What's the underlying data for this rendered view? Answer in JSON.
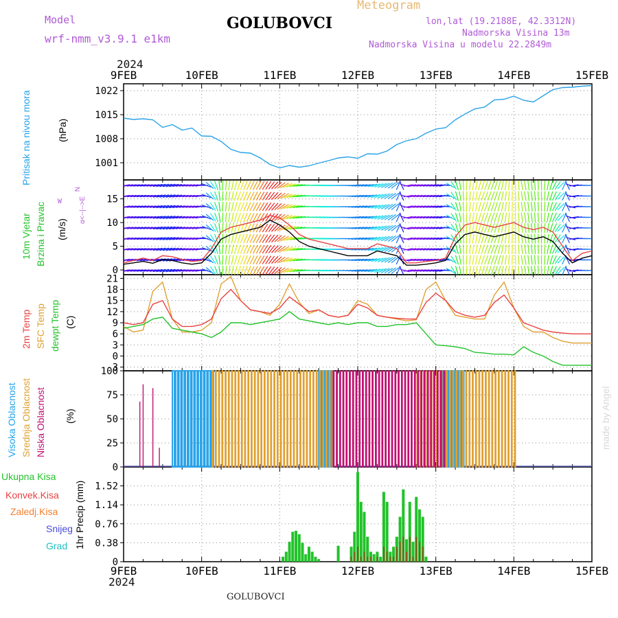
{
  "header": {
    "model_label": "Model",
    "model_name": "wrf-nmm_v3.9.1  e1km",
    "station": "GOLUBOVCI",
    "meteogram_label": "Meteogram",
    "coords": "lon,lat (19.2188E, 42.3312N)",
    "elevation": "Nadmorska Visina 13m",
    "model_elevation": "Nadmorska Visina u modelu 22.2849m",
    "year_top": "2024",
    "year_bottom": "2024",
    "footer_station": "GOLUBOVCI",
    "watermark": "made by Angel"
  },
  "colors": {
    "pressure": "#29a3e8",
    "temp2m": "#e84040",
    "sfc_temp": "#e0a030",
    "dewpt": "#22c22a",
    "high_cloud": "#29a3e8",
    "mid_cloud": "#e0a030",
    "low_cloud": "#c01070",
    "total_precip": "#22c22a",
    "conv_precip": "#e84040",
    "frozen": "#f08030",
    "snow": "#4a4ad8",
    "hail": "#20c0c0",
    "axis_purple": "#b05ad6"
  },
  "panel_labels": {
    "pressure": [
      "Pritisak na nivou mora",
      "(hPa)"
    ],
    "wind": [
      "10m Vjetar",
      "Brzina i Pravac",
      "(m/s)"
    ],
    "wind_rose": [
      "N",
      "α<--|-->E",
      "W"
    ],
    "temp": [
      "2m Temp",
      "SFC Temp",
      "dewpt Temp",
      "(C)"
    ],
    "cloud": [
      "Visoka Oblacnost",
      "Srednja Oblacnost",
      "Niska Oblacnost",
      "(%)"
    ],
    "precip_legend": [
      "Ukupna Kisa",
      "Konvek.Kisa",
      "Zaledj.Kisa",
      "Snijeg",
      "Grad"
    ],
    "precip_axis": "1hr Precip (mm)"
  },
  "chart_data": {
    "type": "line",
    "x_labels": [
      "9FEB",
      "10FEB",
      "11FEB",
      "12FEB",
      "13FEB",
      "14FEB",
      "15FEB"
    ],
    "x_range_hours": [
      0,
      144
    ],
    "panels": {
      "pressure": {
        "unit": "hPa",
        "yticks": [
          1001,
          1008,
          1015,
          1022
        ],
        "ylim": [
          996,
          1024
        ],
        "x": [
          0,
          3,
          6,
          9,
          12,
          15,
          18,
          21,
          24,
          27,
          30,
          33,
          36,
          39,
          42,
          45,
          48,
          51,
          54,
          57,
          60,
          63,
          66,
          69,
          72,
          75,
          78,
          81,
          84,
          87,
          90,
          93,
          96,
          99,
          102,
          105,
          108,
          111,
          114,
          117,
          120,
          123,
          126,
          129,
          132,
          135,
          138,
          141,
          144
        ],
        "values": [
          1014,
          1013.6,
          1013.8,
          1013.5,
          1011.3,
          1012.1,
          1010.5,
          1011.1,
          1008.8,
          1008.7,
          1007.2,
          1004.9,
          1004,
          1003.8,
          1002.4,
          1000.5,
          999.5,
          1000.2,
          999.7,
          1000.1,
          1000.9,
          1001.6,
          1002.4,
          1002.7,
          1002.3,
          1003.6,
          1003.5,
          1004.4,
          1006.3,
          1007.4,
          1008,
          1009.6,
          1010.8,
          1011.2,
          1013.5,
          1015.2,
          1016.7,
          1017.2,
          1019.3,
          1019.5,
          1020.4,
          1019.2,
          1018.7,
          1020.5,
          1022.3,
          1022.9,
          1023,
          1023.3,
          1023.5
        ]
      },
      "wind": {
        "unit": "m/s",
        "yticks": [
          0,
          5,
          10,
          15
        ],
        "ylim": [
          -1,
          19
        ],
        "x": [
          0,
          3,
          6,
          9,
          12,
          15,
          18,
          21,
          24,
          27,
          30,
          33,
          36,
          39,
          42,
          45,
          48,
          51,
          54,
          57,
          60,
          63,
          66,
          69,
          72,
          75,
          78,
          81,
          84,
          87,
          90,
          93,
          96,
          99,
          102,
          105,
          108,
          111,
          114,
          117,
          120,
          123,
          126,
          129,
          132,
          135,
          138,
          141,
          144
        ],
        "speed": [
          1.2,
          1.5,
          1.8,
          1.4,
          2.2,
          2.0,
          1.5,
          1.2,
          1.5,
          3.5,
          6.5,
          7.5,
          8.0,
          8.5,
          9.0,
          10.5,
          9.5,
          8.0,
          6.0,
          5.0,
          4.5,
          4.0,
          3.5,
          3.0,
          3.0,
          3.0,
          4.0,
          3.5,
          3.0,
          1.0,
          1.0,
          1.2,
          1.5,
          2.0,
          5.5,
          7.5,
          8.0,
          7.5,
          7.0,
          7.5,
          8.0,
          7.0,
          6.5,
          7.0,
          6.0,
          3.5,
          1.5,
          2.5,
          3.0
        ],
        "gust": [
          1.5,
          2.0,
          2.5,
          2.0,
          3.0,
          2.8,
          2.2,
          1.8,
          2.0,
          4.5,
          8.0,
          9.0,
          9.5,
          10.0,
          10.5,
          11.5,
          11.0,
          9.5,
          7.5,
          6.5,
          6.0,
          5.5,
          5.0,
          4.5,
          4.5,
          4.5,
          5.5,
          5.0,
          4.5,
          1.5,
          1.5,
          1.8,
          2.0,
          2.5,
          7.0,
          9.5,
          10.0,
          9.5,
          9.0,
          9.5,
          10.0,
          9.0,
          8.5,
          9.0,
          8.0,
          5.0,
          2.0,
          3.5,
          4.0
        ],
        "direction_deg": [
          80,
          80,
          80,
          80,
          75,
          75,
          80,
          80,
          80,
          140,
          180,
          190,
          200,
          205,
          210,
          215,
          230,
          250,
          260,
          270,
          275,
          275,
          270,
          270,
          260,
          260,
          250,
          240,
          230,
          80,
          80,
          80,
          80,
          80,
          160,
          180,
          190,
          200,
          200,
          190,
          180,
          170,
          175,
          180,
          200,
          230,
          80,
          90,
          90
        ]
      },
      "temperature": {
        "unit": "C",
        "yticks": [
          -3,
          0,
          3,
          6,
          9,
          12,
          15,
          18,
          21
        ],
        "ylim": [
          -4,
          22
        ],
        "x": [
          0,
          3,
          6,
          9,
          12,
          15,
          18,
          21,
          24,
          27,
          30,
          33,
          36,
          39,
          42,
          45,
          48,
          51,
          54,
          57,
          60,
          63,
          66,
          69,
          72,
          75,
          78,
          81,
          84,
          87,
          90,
          93,
          96,
          99,
          102,
          105,
          108,
          111,
          114,
          117,
          120,
          123,
          126,
          129,
          132,
          135,
          138,
          141,
          144
        ],
        "temp_2m": [
          9.0,
          8.5,
          9.0,
          14.0,
          15.0,
          10.0,
          8.0,
          8.0,
          8.5,
          10.0,
          15.5,
          18.0,
          15.0,
          12.5,
          12.0,
          11.5,
          13.0,
          16.0,
          14.0,
          12.0,
          12.5,
          11.0,
          10.5,
          11.0,
          14.0,
          13.0,
          11.0,
          10.5,
          10.2,
          10.0,
          10.0,
          14.5,
          17.0,
          15.0,
          12.0,
          11.0,
          10.5,
          11.0,
          14.5,
          16.5,
          13.0,
          9.0,
          8.0,
          7.0,
          6.5,
          6.2,
          6.0,
          6.0,
          6.0
        ],
        "sfc_temp": [
          8.0,
          6.5,
          7.0,
          17.5,
          20.0,
          10.0,
          6.5,
          6.5,
          7.0,
          9.0,
          19.5,
          21.5,
          15.0,
          12.5,
          12.0,
          11.0,
          14.0,
          19.5,
          14.5,
          11.5,
          12.5,
          11.0,
          10.5,
          11.0,
          15.0,
          14.0,
          11.0,
          10.5,
          10.0,
          9.5,
          9.8,
          18.0,
          20.0,
          15.0,
          11.0,
          10.5,
          10.0,
          10.0,
          16.5,
          20.0,
          13.0,
          8.0,
          6.5,
          6.5,
          5.0,
          4.0,
          3.5,
          3.5,
          3.5
        ],
        "dewpt": [
          7.5,
          8.0,
          8.5,
          10.0,
          10.5,
          7.5,
          7.0,
          6.5,
          6.0,
          5.0,
          6.5,
          9.0,
          9.0,
          8.5,
          9.0,
          9.5,
          10.0,
          12.0,
          10.0,
          9.5,
          9.0,
          8.5,
          9.0,
          8.5,
          9.0,
          9.0,
          8.0,
          8.0,
          8.5,
          8.5,
          9.0,
          6.0,
          3.0,
          2.8,
          2.5,
          2.0,
          1.0,
          0.8,
          0.5,
          0.5,
          0.3,
          2.5,
          1.0,
          0.0,
          -1.5,
          -2.5,
          -2.5,
          -2.5,
          -2.5
        ]
      },
      "cloud": {
        "unit": "%",
        "yticks": [
          0,
          25,
          50,
          75,
          100
        ],
        "ylim": [
          0,
          100
        ],
        "series": [
          {
            "name": "Visoka Oblacnost",
            "segments_hours": [
              [
                15,
                27
              ],
              [
                60,
                64
              ],
              [
                98,
                104
              ]
            ],
            "value": 100
          },
          {
            "name": "Srednja Oblacnost",
            "segments_hours": [
              [
                27,
                64
              ],
              [
                90,
                120
              ]
            ],
            "value": 100
          },
          {
            "name": "Niska Oblacnost",
            "segments_hours": [
              [
                64,
                98
              ]
            ],
            "value": 100
          },
          {
            "name": "Niska Oblacnost (early)",
            "x": [
              5,
              6,
              9,
              11
            ],
            "values": [
              68,
              86,
              82,
              20
            ]
          }
        ]
      },
      "precip": {
        "unit": "mm",
        "yticks": [
          0,
          0.38,
          0.76,
          1.14,
          1.52
        ],
        "ylim": [
          0,
          1.9
        ],
        "x": [
          49,
          50,
          51,
          52,
          53,
          54,
          55,
          56,
          57,
          58,
          59,
          60,
          66,
          70,
          71,
          72,
          73,
          74,
          75,
          76,
          77,
          78,
          79,
          80,
          81,
          82,
          83,
          84,
          85,
          86,
          87,
          88,
          89,
          90,
          91,
          92,
          93
        ],
        "total": [
          0.1,
          0.2,
          0.4,
          0.6,
          0.62,
          0.55,
          0.38,
          0.15,
          0.3,
          0.2,
          0.1,
          0.05,
          0.32,
          0.3,
          0.6,
          1.8,
          1.2,
          1.0,
          0.5,
          0.2,
          0.15,
          0.2,
          0.1,
          1.4,
          1.2,
          0.2,
          0.3,
          0.5,
          0.9,
          1.45,
          0.45,
          1.2,
          0.4,
          1.3,
          1.05,
          0.9,
          0.1
        ],
        "convective": [
          0.0,
          0.0,
          0.0,
          0.0,
          0.0,
          0.0,
          0.0,
          0.0,
          0.0,
          0.0,
          0.0,
          0.0,
          0.0,
          0.1,
          0.2,
          0.3,
          0.1,
          0.2,
          0.1,
          0.1,
          0.0,
          0.1,
          0.0,
          0.3,
          0.2,
          0.1,
          0.1,
          0.3,
          0.4,
          0.5,
          0.2,
          0.5,
          0.1,
          0.5,
          0.4,
          0.3,
          0.0
        ]
      }
    }
  }
}
